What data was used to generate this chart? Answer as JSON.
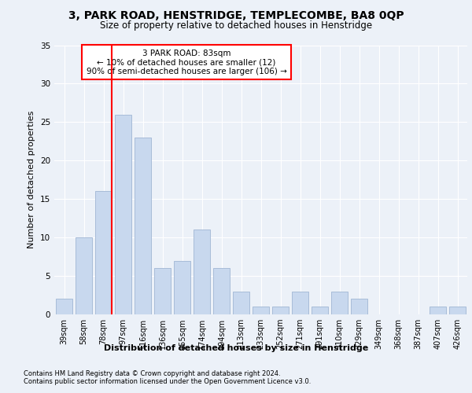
{
  "title1": "3, PARK ROAD, HENSTRIDGE, TEMPLECOMBE, BA8 0QP",
  "title2": "Size of property relative to detached houses in Henstridge",
  "xlabel": "Distribution of detached houses by size in Henstridge",
  "ylabel": "Number of detached properties",
  "categories": [
    "39sqm",
    "58sqm",
    "78sqm",
    "97sqm",
    "116sqm",
    "136sqm",
    "155sqm",
    "174sqm",
    "194sqm",
    "213sqm",
    "233sqm",
    "252sqm",
    "271sqm",
    "291sqm",
    "310sqm",
    "329sqm",
    "349sqm",
    "368sqm",
    "387sqm",
    "407sqm",
    "426sqm"
  ],
  "values": [
    2,
    10,
    16,
    26,
    23,
    6,
    7,
    11,
    6,
    3,
    1,
    1,
    3,
    1,
    3,
    2,
    0,
    0,
    0,
    1,
    1
  ],
  "bar_color": "#c8d8ee",
  "bar_edgecolor": "#a8bcd8",
  "red_line_index": 2,
  "annotation_title": "3 PARK ROAD: 83sqm",
  "annotation_line1": "← 10% of detached houses are smaller (12)",
  "annotation_line2": "90% of semi-detached houses are larger (106) →",
  "ylim": [
    0,
    35
  ],
  "yticks": [
    0,
    5,
    10,
    15,
    20,
    25,
    30,
    35
  ],
  "footer1": "Contains HM Land Registry data © Crown copyright and database right 2024.",
  "footer2": "Contains public sector information licensed under the Open Government Licence v3.0.",
  "bg_color": "#ecf1f8",
  "plot_bg_color": "#ecf1f8"
}
